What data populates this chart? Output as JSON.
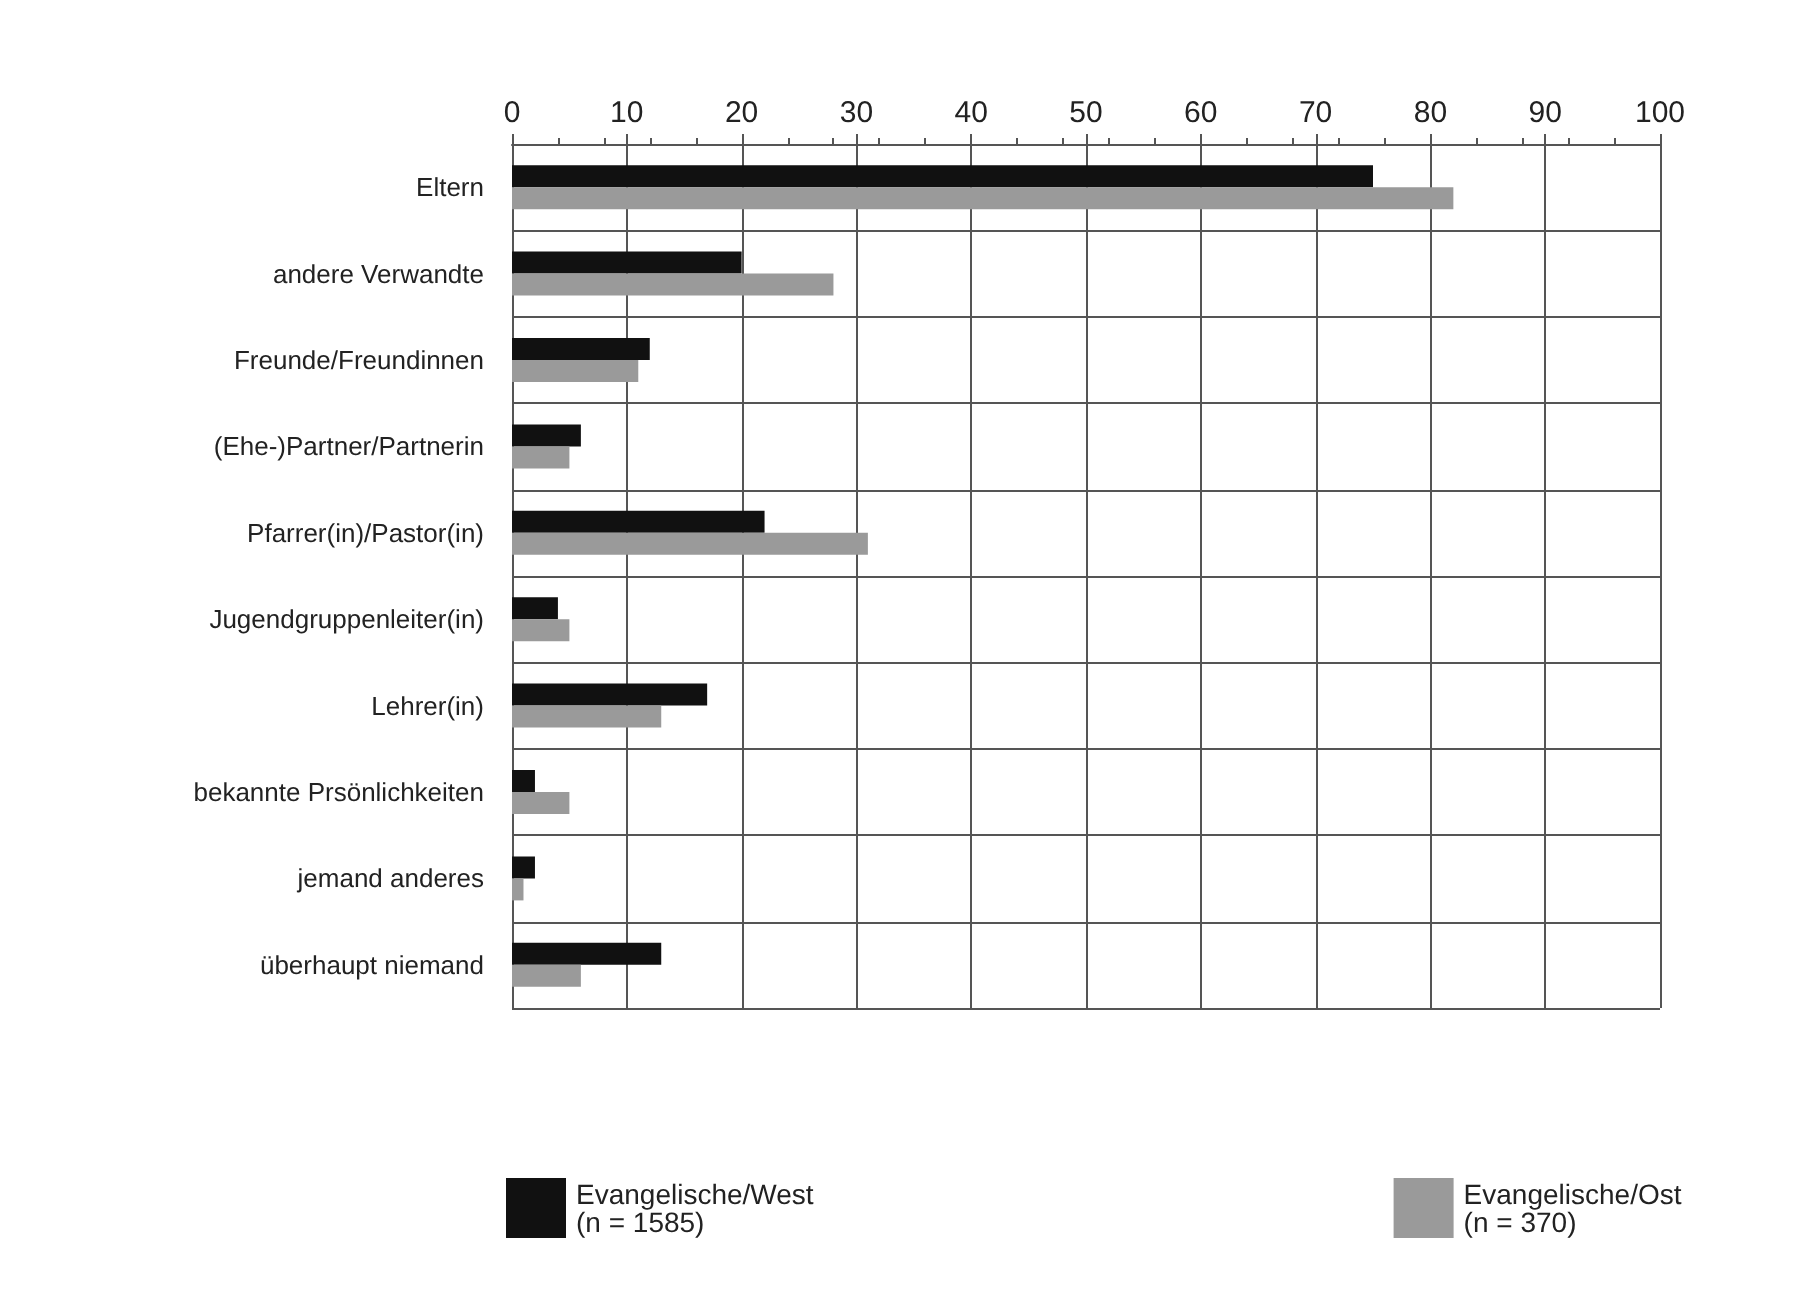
{
  "chart_data": {
    "type": "bar",
    "orientation": "horizontal",
    "categories": [
      "Eltern",
      "andere Verwandte",
      "Freunde/Freundinnen",
      "(Ehe-)Partner/Partnerin",
      "Pfarrer(in)/Pastor(in)",
      "Jugendgruppenleiter(in)",
      "Lehrer(in)",
      "bekannte Prsönlichkeiten",
      "jemand anderes",
      "überhaupt niemand"
    ],
    "series": [
      {
        "name": "Evangelische/West (n = 1585)",
        "color": "#111111",
        "values": [
          75,
          20,
          12,
          6,
          22,
          4,
          17,
          2,
          2,
          13
        ]
      },
      {
        "name": "Evangelische/Ost (n = 370)",
        "color": "#9a9a9a",
        "values": [
          82,
          28,
          11,
          5,
          31,
          5,
          13,
          5,
          1,
          6
        ]
      }
    ],
    "xlim": [
      0,
      100
    ],
    "xticks": [
      0,
      10,
      20,
      30,
      40,
      50,
      60,
      70,
      80,
      90,
      100
    ],
    "grid": true,
    "legend": "bottom"
  }
}
